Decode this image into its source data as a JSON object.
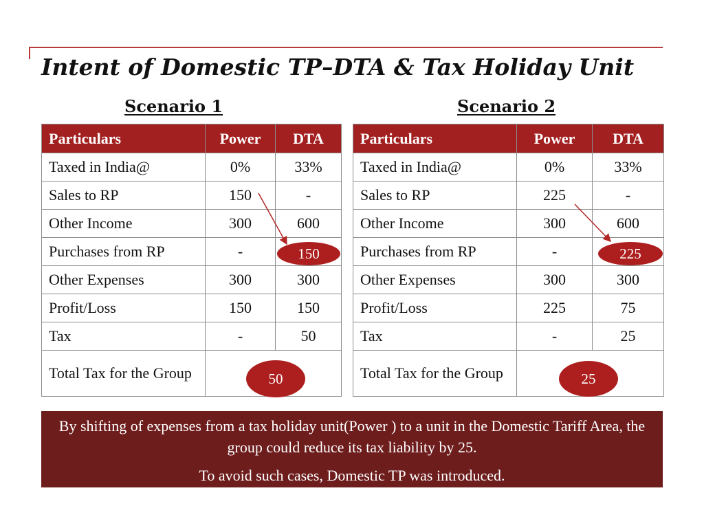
{
  "title": "Intent of Domestic TP–DTA & Tax Holiday Unit",
  "scenario1": {
    "heading": "Scenario 1",
    "headers": [
      "Particulars",
      "Power",
      "DTA"
    ],
    "rows": [
      [
        "Taxed in India@",
        "0%",
        "33%"
      ],
      [
        "Sales to RP",
        "150",
        "-"
      ],
      [
        "Other Income",
        "300",
        "600"
      ],
      [
        "Purchases from RP",
        "-",
        "150"
      ],
      [
        "Other Expenses",
        "300",
        "300"
      ],
      [
        "Profit/Loss",
        "150",
        "150"
      ],
      [
        "Tax",
        "-",
        "50"
      ]
    ],
    "total_label": "Total Tax for the Group",
    "total_value": "50"
  },
  "scenario2": {
    "heading": "Scenario 2",
    "headers": [
      "Particulars",
      "Power",
      "DTA"
    ],
    "rows": [
      [
        "Taxed in India@",
        "0%",
        "33%"
      ],
      [
        "Sales to RP",
        "225",
        "-"
      ],
      [
        "Other Income",
        "300",
        "600"
      ],
      [
        "Purchases from RP",
        "-",
        "225"
      ],
      [
        "Other Expenses",
        "300",
        "300"
      ],
      [
        "Profit/Loss",
        "225",
        "75"
      ],
      [
        "Tax",
        "-",
        "25"
      ]
    ],
    "total_label": "Total Tax for the Group",
    "total_value": "25"
  },
  "summary": {
    "line1": "By shifting of expenses from a tax holiday unit(Power ) to a unit in the Domestic Tariff Area, the group could reduce its tax liability by 25.",
    "line2": "To avoid such cases, Domestic TP was introduced."
  },
  "colors": {
    "header_red": "#a32020",
    "oval_red": "#ad1f1f",
    "summary_maroon": "#6e1d1d",
    "rule_red": "#b83a3a"
  }
}
